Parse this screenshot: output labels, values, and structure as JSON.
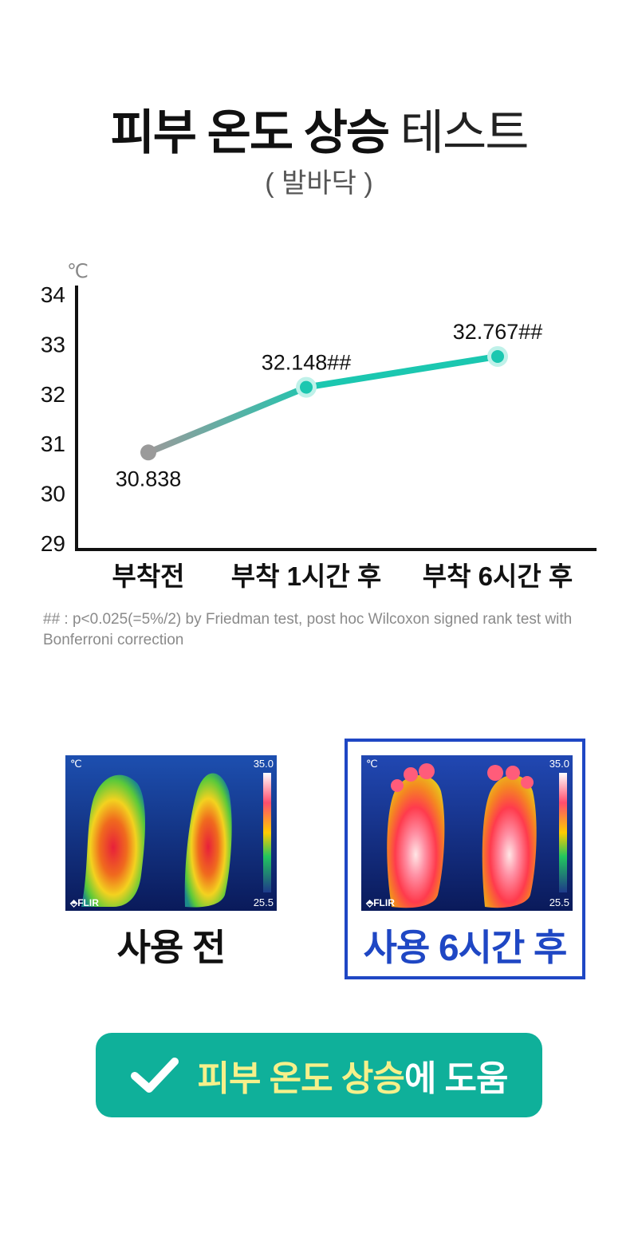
{
  "header": {
    "title_bold": "피부 온도 상승",
    "title_light": "테스트",
    "subtitle": "( 발바닥 )"
  },
  "chart_data": {
    "type": "line",
    "title": "피부 온도 상승 테스트",
    "unit_label": "℃",
    "categories": [
      "부착전",
      "부착 1시간 후",
      "부착 6시간 후"
    ],
    "series": [
      {
        "values": [
          30.838,
          32.148,
          32.767
        ]
      }
    ],
    "data_labels": [
      "30.838",
      "32.148##",
      "32.767##"
    ],
    "y_ticks": [
      29,
      30,
      31,
      32,
      33,
      34
    ],
    "ylim": [
      29,
      34
    ],
    "grid": false,
    "colors": {
      "start": "#9a9a9a",
      "end": "#1bc7b0"
    }
  },
  "footnote": "## : p<0.025(=5%/2) by Friedman test, post hoc Wilcoxon signed rank test with Bonferroni correction",
  "images": {
    "before": {
      "caption": "사용 전",
      "unit": "℃",
      "scale_max": "35.0",
      "scale_min": "25.5",
      "brand": "⬘FLIR"
    },
    "after": {
      "caption": "사용 6시간 후",
      "unit": "℃",
      "scale_max": "35.0",
      "scale_min": "25.5",
      "brand": "⬘FLIR"
    }
  },
  "cta": {
    "icon": "checkmark-icon",
    "highlight": "피부 온도 상승",
    "rest": "에 도움",
    "color": "#0fb09a"
  }
}
